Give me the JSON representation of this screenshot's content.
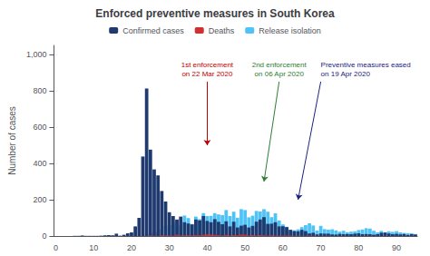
{
  "chart_data": {
    "type": "bar",
    "title": "Enforced preventive measures in South Korea",
    "ylabel": "Number of cases",
    "categories": [
      "0",
      null,
      null,
      null,
      null,
      null,
      null,
      null,
      null,
      null,
      "10",
      null,
      null,
      null,
      null,
      null,
      null,
      null,
      null,
      null,
      "20",
      null,
      null,
      null,
      null,
      null,
      null,
      null,
      null,
      null,
      "30",
      null,
      null,
      null,
      null,
      null,
      null,
      null,
      null,
      null,
      "40",
      null,
      null,
      null,
      null,
      null,
      null,
      null,
      null,
      null,
      "50",
      null,
      null,
      null,
      null,
      null,
      null,
      null,
      null,
      null,
      "60",
      null,
      null,
      null,
      null,
      null,
      null,
      null,
      null,
      null,
      "70",
      null,
      null,
      null,
      null,
      null,
      null,
      null,
      null,
      null,
      "80",
      null,
      null,
      null,
      null,
      null,
      null,
      null,
      null,
      null,
      "90",
      null,
      null,
      null,
      null,
      null
    ],
    "series": [
      {
        "name": "Confirmed cases",
        "color": "#1f3a6e",
        "values": [
          0,
          0,
          0,
          0,
          0,
          1,
          1,
          3,
          1,
          1,
          1,
          1,
          2,
          4,
          5,
          4,
          13,
          2,
          7,
          15,
          20,
          53,
          100,
          438,
          813,
          476,
          367,
          334,
          248,
          190,
          131,
          110,
          91,
          107,
          76,
          69,
          64,
          91,
          86,
          110,
          83,
          76,
          93,
          78,
          65,
          81,
          53,
          79,
          47,
          57,
          62,
          47,
          56,
          79,
          91,
          104,
          67,
          68,
          76,
          53,
          54,
          49,
          34,
          27,
          26,
          34,
          27,
          14,
          18,
          9,
          14,
          13,
          13,
          9,
          8,
          12,
          10,
          11,
          10,
          13,
          15,
          10,
          11,
          10,
          7,
          10,
          18,
          19,
          14,
          10,
          12,
          9,
          11,
          6,
          10,
          8
        ]
      },
      {
        "name": "Deaths",
        "color": "#d32f2f",
        "values": [
          0,
          0,
          0,
          0,
          0,
          0,
          0,
          0,
          0,
          0,
          0,
          0,
          0,
          0,
          0,
          0,
          0,
          0,
          0,
          0,
          0,
          0,
          0,
          1,
          1,
          3,
          2,
          1,
          4,
          3,
          3,
          2,
          7,
          3,
          4,
          4,
          3,
          5,
          4,
          7,
          9,
          8,
          6,
          5,
          3,
          6,
          3,
          5,
          4,
          8,
          7,
          3,
          5,
          3,
          5,
          4,
          2,
          4,
          2,
          2,
          2,
          3,
          3,
          1,
          2,
          1,
          1,
          2,
          1,
          1,
          0,
          1,
          1,
          1,
          0,
          0,
          1,
          0,
          0,
          0,
          0,
          0,
          1,
          1,
          0,
          0,
          0,
          1,
          0,
          0,
          1,
          0,
          0,
          0,
          1,
          0
        ]
      },
      {
        "name": "Release isolation",
        "color": "#4FC3F7",
        "values": [
          0,
          0,
          0,
          0,
          0,
          0,
          0,
          0,
          0,
          0,
          0,
          0,
          0,
          0,
          0,
          0,
          0,
          0,
          0,
          0,
          0,
          0,
          0,
          0,
          10,
          17,
          22,
          22,
          37,
          57,
          60,
          73,
          84,
          57,
          113,
          99,
          66,
          107,
          93,
          126,
          110,
          111,
          126,
          119,
          115,
          143,
          110,
          134,
          101,
          148,
          143,
          103,
          112,
          138,
          135,
          148,
          134,
          104,
          125,
          86,
          64,
          51,
          34,
          32,
          37,
          49,
          60,
          70,
          58,
          30,
          56,
          38,
          35,
          37,
          31,
          24,
          29,
          21,
          24,
          26,
          33,
          36,
          43,
          41,
          29,
          20,
          28,
          21,
          26,
          23,
          27,
          20,
          17,
          15,
          15,
          11
        ]
      }
    ],
    "ylim": [
      0,
      1050
    ],
    "yticks": [
      0,
      200,
      400,
      600,
      800,
      1000
    ],
    "grid": false,
    "legend": "top",
    "annotations": [
      {
        "text": "1st enforcement\non 22 Mar 2020",
        "color": "#c00000",
        "x": 40,
        "y": 500
      },
      {
        "text": "2nd enforcement\non 06 Apr 2020",
        "color": "#2e7d32",
        "x": 55,
        "y": 300
      },
      {
        "text": "Preventive measures eased\non 19 Apr 2020",
        "color": "#1a237e",
        "x": 64,
        "y": 200
      }
    ]
  }
}
